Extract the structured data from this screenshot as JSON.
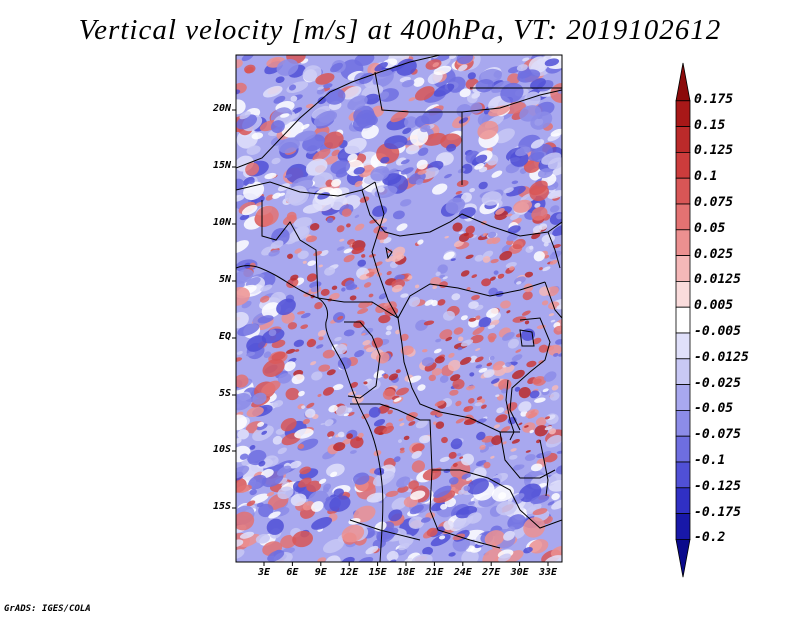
{
  "title": "Vertical velocity [m/s] at 400hPa, VT: 2019102612",
  "credit": "GrADS: IGES/COLA",
  "lat_labels": [
    "20N",
    "15N",
    "10N",
    "5N",
    "EQ",
    "5S",
    "10S",
    "15S"
  ],
  "lon_labels": [
    "3E",
    "6E",
    "9E",
    "12E",
    "15E",
    "18E",
    "21E",
    "24E",
    "27E",
    "30E",
    "33E"
  ],
  "colorbar": {
    "labels": [
      "0.175",
      "0.15",
      "0.125",
      "0.1",
      "0.075",
      "0.05",
      "0.025",
      "0.0125",
      "0.005",
      "-0.005",
      "-0.0125",
      "-0.025",
      "-0.05",
      "-0.075",
      "-0.1",
      "-0.125",
      "-0.175",
      "-0.2"
    ],
    "colors": [
      "#8b0a0a",
      "#a81818",
      "#bb2a2a",
      "#cc3c3c",
      "#d85656",
      "#e37272",
      "#ec9090",
      "#f5b8b8",
      "#fadcdc",
      "#ffffff",
      "#e0e0fa",
      "#c8c8f5",
      "#a8a8ef",
      "#8c8ce8",
      "#6e6ee0",
      "#5050d6",
      "#3030c4",
      "#1818a8",
      "#0a0a8c"
    ]
  }
}
